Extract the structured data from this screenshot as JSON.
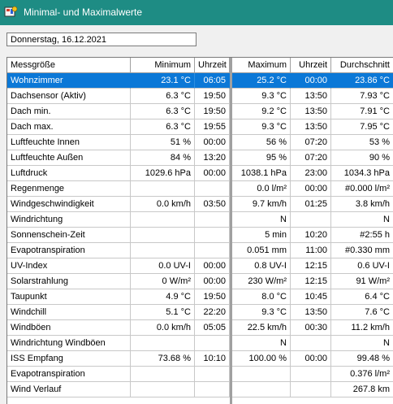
{
  "window": {
    "title": "Minimal- und Maximalwerte"
  },
  "date": "Donnerstag, 16.12.2021",
  "table": {
    "columns": [
      "Messgröße",
      "Minimum",
      "Uhrzeit",
      "Maximum",
      "Uhrzeit",
      "Durchschnitt"
    ],
    "selected_row": 0,
    "rows": [
      [
        "Wohnzimmer",
        "23.1 °C",
        "06:05",
        "25.2 °C",
        "00:00",
        "23.86 °C"
      ],
      [
        "Dachsensor (Aktiv)",
        "6.3 °C",
        "19:50",
        "9.3 °C",
        "13:50",
        "7.93 °C"
      ],
      [
        "Dach min.",
        "6.3 °C",
        "19:50",
        "9.2 °C",
        "13:50",
        "7.91 °C"
      ],
      [
        "Dach max.",
        "6.3 °C",
        "19:55",
        "9.3 °C",
        "13:50",
        "7.95 °C"
      ],
      [
        "Luftfeuchte Innen",
        "51 %",
        "00:00",
        "56 %",
        "07:20",
        "53 %"
      ],
      [
        "Luftfeuchte Außen",
        "84 %",
        "13:20",
        "95 %",
        "07:20",
        "90 %"
      ],
      [
        "Luftdruck",
        "1029.6 hPa",
        "00:00",
        "1038.1 hPa",
        "23:00",
        "1034.3 hPa"
      ],
      [
        "Regenmenge",
        "",
        "",
        "0.0 l/m²",
        "00:00",
        "#0.000 l/m²"
      ],
      [
        "Windgeschwindigkeit",
        "0.0 km/h",
        "03:50",
        "9.7 km/h",
        "01:25",
        "3.8 km/h"
      ],
      [
        "Windrichtung",
        "",
        "",
        "N",
        "",
        "N"
      ],
      [
        "Sonnenschein-Zeit",
        "",
        "",
        "5 min",
        "10:20",
        "#2:55 h"
      ],
      [
        "Evapotranspiration",
        "",
        "",
        "0.051 mm",
        "11:00",
        "#0.330 mm"
      ],
      [
        "UV-Index",
        "0.0 UV-I",
        "00:00",
        "0.8 UV-I",
        "12:15",
        "0.6 UV-I"
      ],
      [
        "Solarstrahlung",
        "0 W/m²",
        "00:00",
        "230 W/m²",
        "12:15",
        "91 W/m²"
      ],
      [
        "Taupunkt",
        "4.9 °C",
        "19:50",
        "8.0 °C",
        "10:45",
        "6.4 °C"
      ],
      [
        "Windchill",
        "5.1 °C",
        "22:20",
        "9.3 °C",
        "13:50",
        "7.6 °C"
      ],
      [
        "Windböen",
        "0.0 km/h",
        "05:05",
        "22.5 km/h",
        "00:30",
        "11.2 km/h"
      ],
      [
        "Windrichtung Windböen",
        "",
        "",
        "N",
        "",
        "N"
      ],
      [
        "ISS Empfang",
        "73.68 %",
        "10:10",
        "100.00 %",
        "00:00",
        "99.48 %"
      ],
      [
        "Evapotranspiration",
        "",
        "",
        "",
        "",
        "0.376 l/m²"
      ],
      [
        "Wind Verlauf",
        "",
        "",
        "",
        "",
        "267.8 km"
      ]
    ]
  },
  "colors": {
    "titlebar": "#1e8c84",
    "selection": "#0b78d7"
  },
  "icons": {
    "app": "weather-app-icon"
  }
}
